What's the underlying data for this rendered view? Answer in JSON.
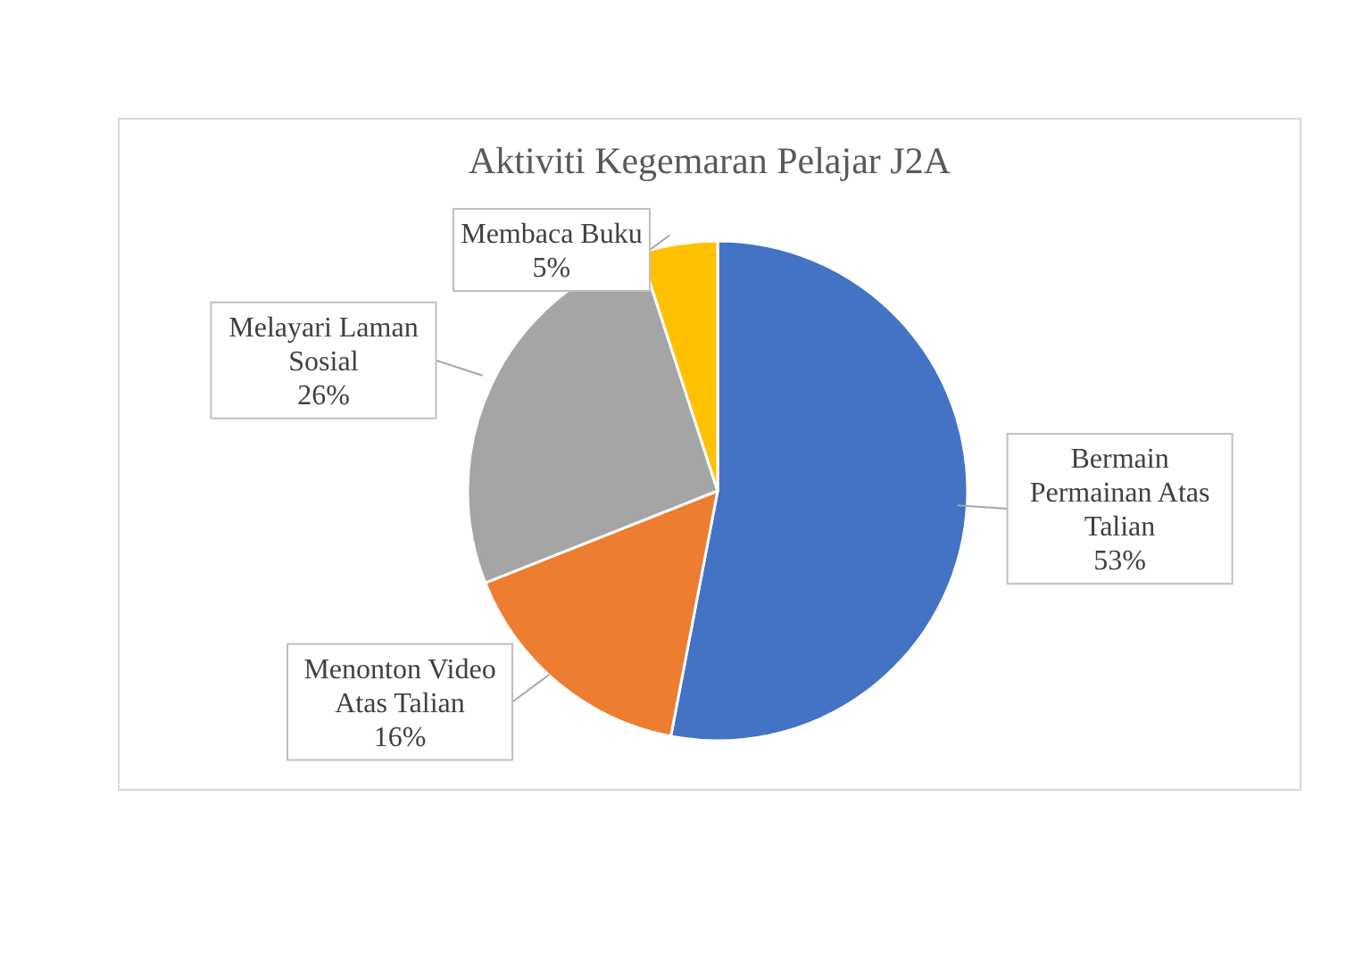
{
  "chart_data": {
    "type": "pie",
    "title": "Aktiviti Kegemaran Pelajar J2A",
    "categories": [
      "Bermain Permainan Atas Talian",
      "Menonton Video Atas Talian",
      "Melayari Laman Sosial",
      "Membaca Buku"
    ],
    "values": [
      53,
      16,
      26,
      5
    ],
    "colors": [
      "#4472c4",
      "#ed7d31",
      "#a5a5a5",
      "#ffc000"
    ],
    "value_labels": [
      "53%",
      "16%",
      "26%",
      "5%"
    ]
  }
}
